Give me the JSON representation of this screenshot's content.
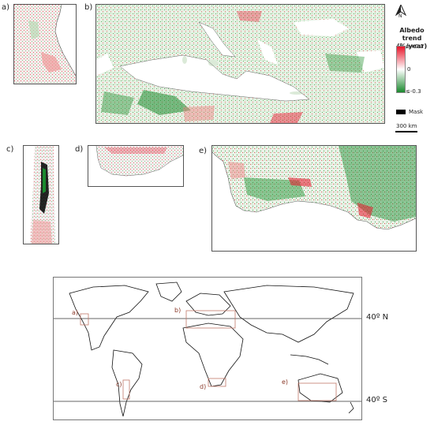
{
  "panels": {
    "a": {
      "label": "a)"
    },
    "b": {
      "label": "b)"
    },
    "c": {
      "label": "c)"
    },
    "d": {
      "label": "d)"
    },
    "e": {
      "label": "e)"
    }
  },
  "north_arrow": {
    "icon": "north-arrow-icon",
    "letter": "N"
  },
  "legend": {
    "title": "Albedo trend (%/year)",
    "max_label": "≥+0.3",
    "mid_label": "0",
    "min_label": "≤-0.3",
    "colors": {
      "positive": "#e8152a",
      "zero": "#ffffff",
      "negative": "#1b8a2e"
    },
    "mask_label": "Mask",
    "mask_color": "#000000",
    "scale_label": "300 km"
  },
  "world_map": {
    "lat_north": "40º N",
    "lat_south": "40º S",
    "region_labels": [
      "a)",
      "b)",
      "c)",
      "d)",
      "e)"
    ],
    "box_color": "#c2796a"
  }
}
